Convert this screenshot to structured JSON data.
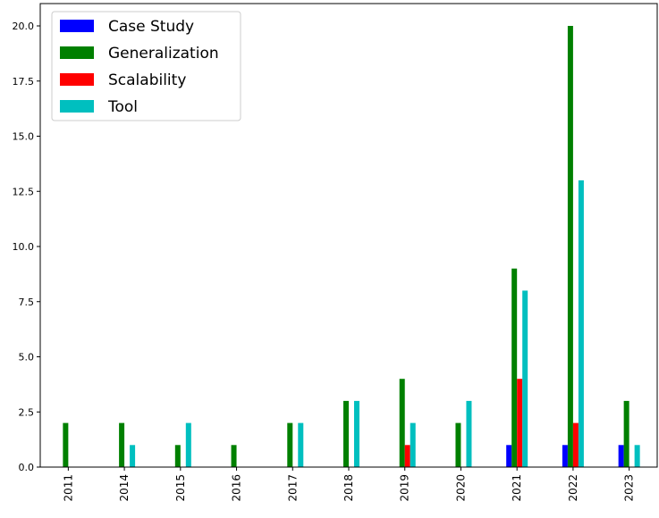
{
  "chart_data": {
    "type": "bar",
    "categories": [
      "2011",
      "2014",
      "2015",
      "2016",
      "2017",
      "2018",
      "2019",
      "2020",
      "2021",
      "2022",
      "2023"
    ],
    "series": [
      {
        "name": "Case Study",
        "color": "#0000ff",
        "values": [
          0,
          0,
          0,
          0,
          0,
          0,
          0,
          0,
          1,
          1,
          1
        ]
      },
      {
        "name": "Generalization",
        "color": "#008000",
        "values": [
          2,
          2,
          1,
          1,
          2,
          3,
          4,
          2,
          9,
          20,
          3
        ]
      },
      {
        "name": "Scalability",
        "color": "#ff0000",
        "values": [
          0,
          0,
          0,
          0,
          0,
          0,
          1,
          0,
          4,
          2,
          0
        ]
      },
      {
        "name": "Tool",
        "color": "#00bfbf",
        "values": [
          0,
          1,
          2,
          0,
          2,
          3,
          2,
          3,
          8,
          13,
          1
        ]
      }
    ],
    "yticks": [
      "0.0",
      "2.5",
      "5.0",
      "7.5",
      "10.0",
      "12.5",
      "15.0",
      "17.5",
      "20.0"
    ],
    "ylim": [
      0,
      21
    ],
    "legend_position": "top-left",
    "grid": false
  }
}
